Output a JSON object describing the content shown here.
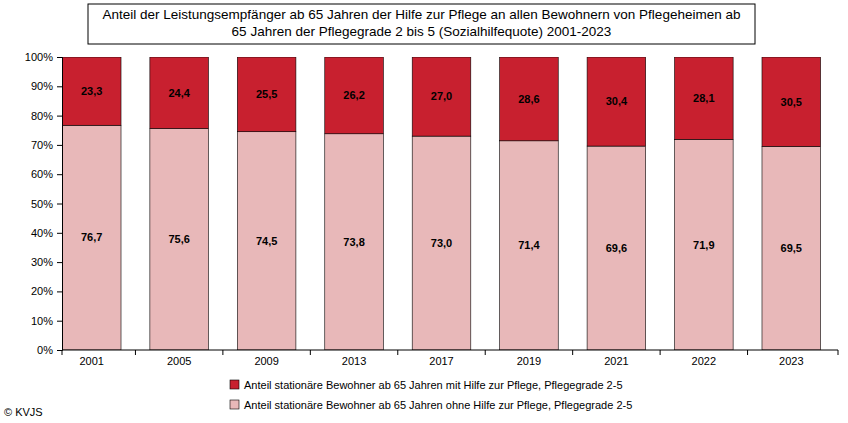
{
  "chart_data": {
    "type": "bar",
    "title": "Anteil der Leistungsempfänger ab 65 Jahren der Hilfe zur Pflege an allen Bewohnern von Pflegeheimen ab\n65 Jahren der Pflegegrade 2 bis 5 (Sozialhilfequote) 2001-2023",
    "categories": [
      "2001",
      "2005",
      "2009",
      "2013",
      "2017",
      "2019",
      "2021",
      "2022",
      "2023"
    ],
    "series": [
      {
        "name": "Anteil stationäre Bewohner ab 65 Jahren ohne Hilfe zur Pflege, Pflegegrade 2-5",
        "color": "#e8b8b9",
        "values": [
          76.7,
          75.6,
          74.5,
          73.8,
          73.0,
          71.4,
          69.6,
          71.9,
          69.5
        ],
        "value_labels": [
          "76,7",
          "75,6",
          "74,5",
          "73,8",
          "73,0",
          "71,4",
          "69,6",
          "71,9",
          "69,5"
        ]
      },
      {
        "name": "Anteil stationäre Bewohner ab 65 Jahren mit Hilfe zur Pflege, Pflegegrade 2-5",
        "color": "#c8202f",
        "values": [
          23.3,
          24.4,
          25.5,
          26.2,
          27.0,
          28.6,
          30.4,
          28.1,
          30.5
        ],
        "value_labels": [
          "23,3",
          "24,4",
          "25,5",
          "26,2",
          "27,0",
          "28,6",
          "30,4",
          "28,1",
          "30,5"
        ]
      }
    ],
    "ylim": [
      0,
      100
    ],
    "yticks": [
      {
        "value": 0,
        "label": "0%"
      },
      {
        "value": 10,
        "label": "10%"
      },
      {
        "value": 20,
        "label": "20%"
      },
      {
        "value": 30,
        "label": "30%"
      },
      {
        "value": 40,
        "label": "40%"
      },
      {
        "value": 50,
        "label": "50%"
      },
      {
        "value": 60,
        "label": "60%"
      },
      {
        "value": 70,
        "label": "70%"
      },
      {
        "value": 80,
        "label": "80%"
      },
      {
        "value": 90,
        "label": "90%"
      },
      {
        "value": 100,
        "label": "100%"
      }
    ],
    "stacked": true,
    "data_labels": true,
    "grid": false,
    "legend": "bottom",
    "annotations": [
      "© KVJS"
    ]
  }
}
